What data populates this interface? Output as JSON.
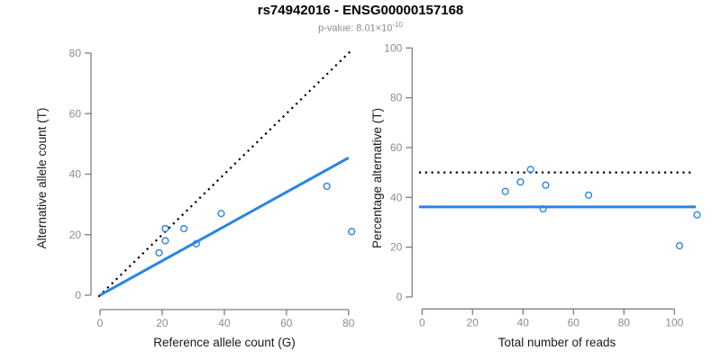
{
  "header": {
    "title": "rs74942016 - ENSG00000157168",
    "pvalue_text": "p-value: 8.01×10",
    "pvalue_exponent": "-10"
  },
  "colors": {
    "accent_blue": "#2B85E2",
    "line_black": "#000000",
    "axis_gray": "#7E7E7E",
    "tick_label_gray": "#8C8C8C",
    "axis_title_color": "#1A1A1A"
  },
  "chart_data": [
    {
      "id": "allele-counts",
      "type": "scatter",
      "xlabel": "Reference allele count (G)",
      "ylabel": "Alternative allele count (T)",
      "xlim": [
        0,
        81
      ],
      "ylim": [
        0,
        81
      ],
      "xticks": [
        0,
        20,
        40,
        60,
        80
      ],
      "yticks": [
        0,
        20,
        40,
        60,
        80
      ],
      "grid": false,
      "points": [
        [
          19,
          14
        ],
        [
          21,
          18
        ],
        [
          21,
          22
        ],
        [
          27,
          22
        ],
        [
          31,
          17
        ],
        [
          39,
          27
        ],
        [
          73,
          36
        ],
        [
          81,
          21
        ]
      ],
      "lines": [
        {
          "name": "identity-line",
          "style": "dotted",
          "color": "#000000",
          "from": [
            -0.5,
            -0.5
          ],
          "to": [
            81,
            81
          ]
        },
        {
          "name": "regression-line",
          "style": "solid",
          "color": "#2B85E2",
          "from": [
            0,
            0
          ],
          "to": [
            80,
            45.4
          ]
        }
      ]
    },
    {
      "id": "percentage-vs-reads",
      "type": "scatter",
      "xlabel": "Total number of reads",
      "ylabel": "Percentage alternative (T)",
      "xlim": [
        0,
        110
      ],
      "ylim": [
        0,
        100
      ],
      "xticks": [
        0,
        20,
        40,
        60,
        80,
        100
      ],
      "yticks": [
        0,
        20,
        40,
        60,
        80,
        100
      ],
      "grid": false,
      "points": [
        [
          33,
          42.4
        ],
        [
          39,
          46.2
        ],
        [
          43,
          51.2
        ],
        [
          48,
          35.4
        ],
        [
          49,
          44.9
        ],
        [
          66,
          40.9
        ],
        [
          102,
          20.6
        ],
        [
          109,
          33.0
        ]
      ],
      "lines": [
        {
          "name": "fifty-percent-line",
          "style": "dotted",
          "color": "#000000",
          "from": [
            -1.2,
            50
          ],
          "to": [
            108,
            50
          ]
        },
        {
          "name": "mean-percentage-line",
          "style": "solid",
          "color": "#2B85E2",
          "from": [
            -1.2,
            36.2
          ],
          "to": [
            108.5,
            36.2
          ]
        }
      ]
    }
  ]
}
